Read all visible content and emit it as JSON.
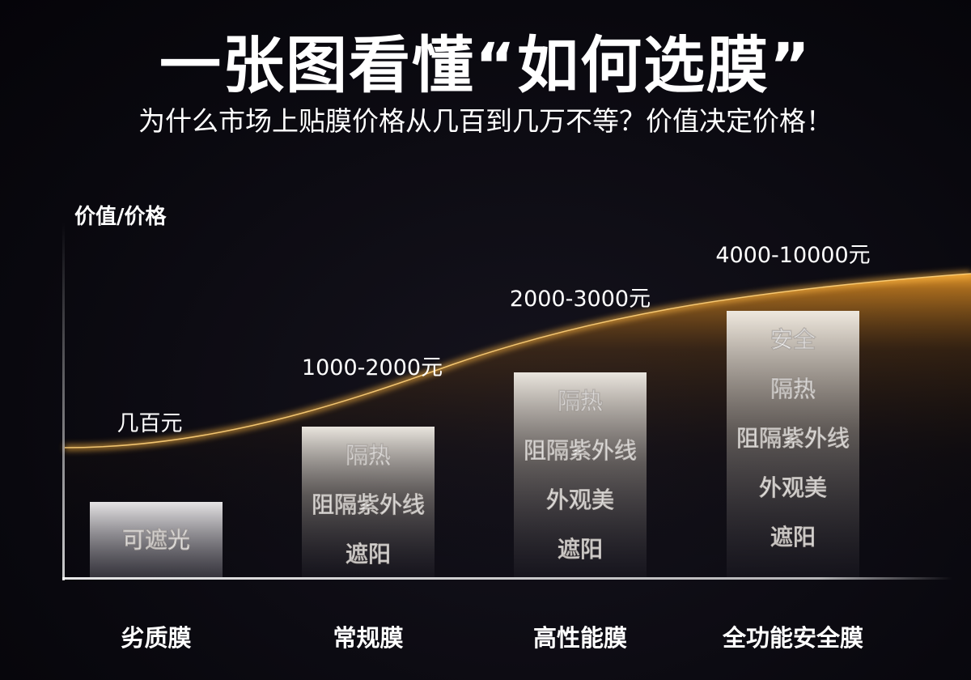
{
  "header": {
    "title": "一张图看懂“如何选膜”",
    "subtitle": "为什么市场上贴膜价格从几百到几万不等？价值决定价格！"
  },
  "colors": {
    "background": "#0b0a12",
    "curve_glow": "#f0a030",
    "text": "#ffffff",
    "box_top": "#f3efe8"
  },
  "chart_data": {
    "type": "bar",
    "ylabel": "价值/价格",
    "xlabel": "",
    "categories": [
      "劣质膜",
      "常规膜",
      "高性能膜",
      "全功能安全膜"
    ],
    "values": [
      1,
      2,
      3,
      4
    ],
    "ylim": [
      0,
      5
    ],
    "price_labels": [
      "几百元",
      "1000-2000元",
      "2000-3000元",
      "4000-10000元"
    ],
    "features": [
      [
        "可遮光"
      ],
      [
        "隔热",
        "阻隔紫外线",
        "遮阳"
      ],
      [
        "隔热",
        "阻隔紫外线",
        "外观美",
        "遮阳"
      ],
      [
        "安全",
        "隔热",
        "阻隔紫外线",
        "外观美",
        "遮阳"
      ]
    ],
    "grid": false,
    "legend": "none"
  }
}
